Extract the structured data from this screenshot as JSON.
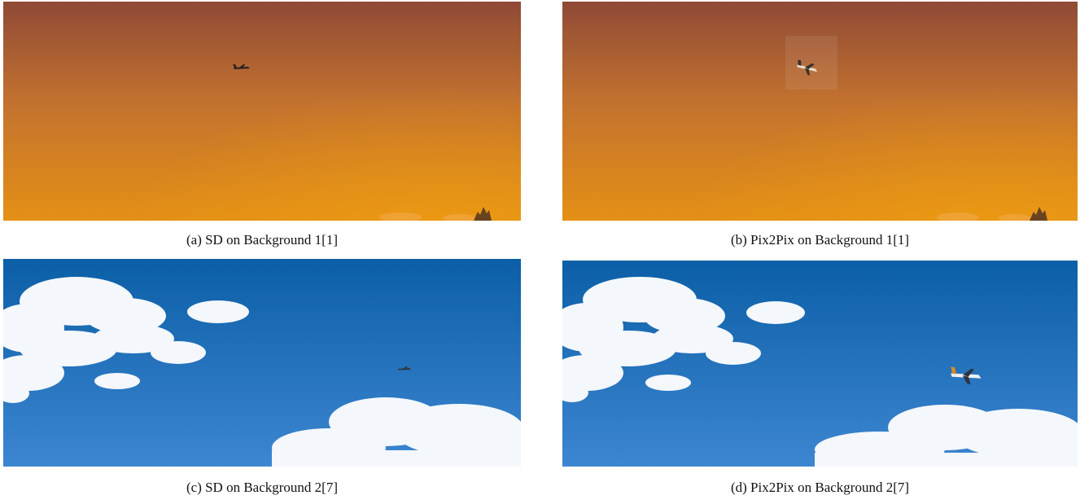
{
  "figure": {
    "panels": [
      {
        "id": "a",
        "caption": "(a) SD on Background 1[1]",
        "background": "sunset-orange-sky",
        "object": "airplane"
      },
      {
        "id": "b",
        "caption": "(b) Pix2Pix on Background 1[1]",
        "background": "sunset-orange-sky",
        "object": "airplane"
      },
      {
        "id": "c",
        "caption": "(c) SD on Background 2[7]",
        "background": "blue-sky-with-clouds",
        "object": "airplane"
      },
      {
        "id": "d",
        "caption": "(d) Pix2Pix on Background 2[7]",
        "background": "blue-sky-with-clouds",
        "object": "airplane"
      }
    ],
    "colors": {
      "sunset_top": "#8f4a36",
      "sunset_mid": "#c2712f",
      "sunset_bottom": "#e49016",
      "sky_top": "#0b5fa6",
      "sky_bottom": "#3d86d1",
      "cloud": "#f4f7fb"
    }
  }
}
